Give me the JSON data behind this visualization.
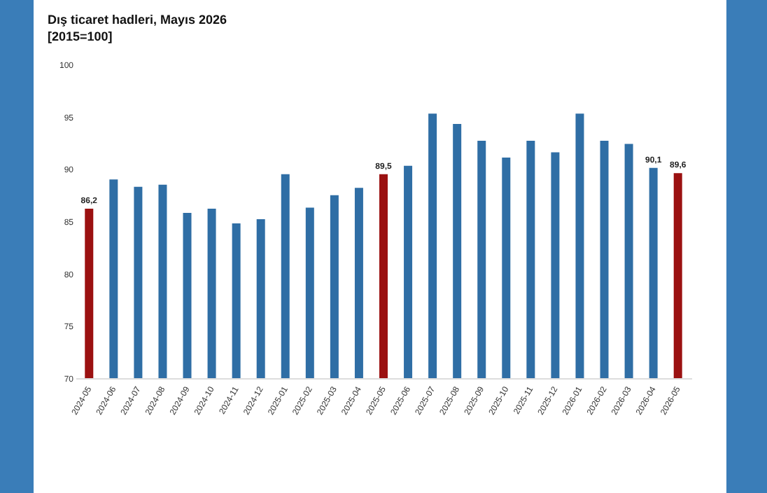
{
  "chart_data": {
    "type": "bar",
    "title": "Dış ticaret hadleri, Mayıs 2026",
    "subtitle": "[2015=100]",
    "categories": [
      "2024-05",
      "2024-06",
      "2024-07",
      "2024-08",
      "2024-09",
      "2024-10",
      "2024-11",
      "2024-12",
      "2025-01",
      "2025-02",
      "2025-03",
      "2025-04",
      "2025-05",
      "2025-06",
      "2025-07",
      "2025-08",
      "2025-09",
      "2025-10",
      "2025-11",
      "2025-12",
      "2026-01",
      "2026-02",
      "2026-03",
      "2026-04",
      "2026-05"
    ],
    "values": [
      86.2,
      89.0,
      88.3,
      88.5,
      85.8,
      86.2,
      84.8,
      85.2,
      89.5,
      86.3,
      87.5,
      88.2,
      89.5,
      90.3,
      95.3,
      94.3,
      92.7,
      91.1,
      92.7,
      91.6,
      95.3,
      92.7,
      92.4,
      90.1,
      89.6
    ],
    "colors": [
      "#9b1111",
      "#2f6ea5",
      "#2f6ea5",
      "#2f6ea5",
      "#2f6ea5",
      "#2f6ea5",
      "#2f6ea5",
      "#2f6ea5",
      "#2f6ea5",
      "#2f6ea5",
      "#2f6ea5",
      "#2f6ea5",
      "#9b1111",
      "#2f6ea5",
      "#2f6ea5",
      "#2f6ea5",
      "#2f6ea5",
      "#2f6ea5",
      "#2f6ea5",
      "#2f6ea5",
      "#2f6ea5",
      "#2f6ea5",
      "#2f6ea5",
      "#2f6ea5",
      "#9b1111"
    ],
    "value_labels": [
      "86,2",
      null,
      null,
      null,
      null,
      null,
      null,
      null,
      null,
      null,
      null,
      null,
      "89,5",
      null,
      null,
      null,
      null,
      null,
      null,
      null,
      null,
      null,
      null,
      "90,1",
      "89,6"
    ],
    "ylim": [
      70,
      100
    ],
    "yticks": [
      70,
      75,
      80,
      85,
      90,
      95,
      100
    ],
    "grid": false
  }
}
